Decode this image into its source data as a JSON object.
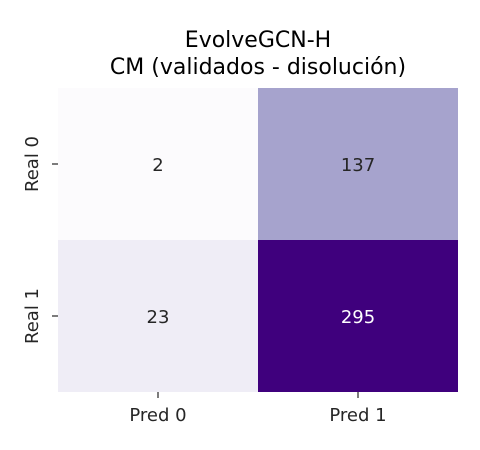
{
  "chart_data": {
    "type": "heatmap",
    "title_lines": [
      "EvolveGCN-H",
      "CM (validados - disolución)"
    ],
    "row_labels": [
      "Real 0",
      "Real 1"
    ],
    "col_labels": [
      "Pred 0",
      "Pred 1"
    ],
    "values": [
      [
        2,
        137
      ],
      [
        23,
        295
      ]
    ],
    "colormap": "Purples",
    "colors": {
      "low": "#fcfbfd",
      "mid": "#a8a6cf",
      "high": "#3f007d",
      "text_dark": "#262626",
      "text_light": "#ffffff"
    },
    "grid": false,
    "colorbar": false
  }
}
